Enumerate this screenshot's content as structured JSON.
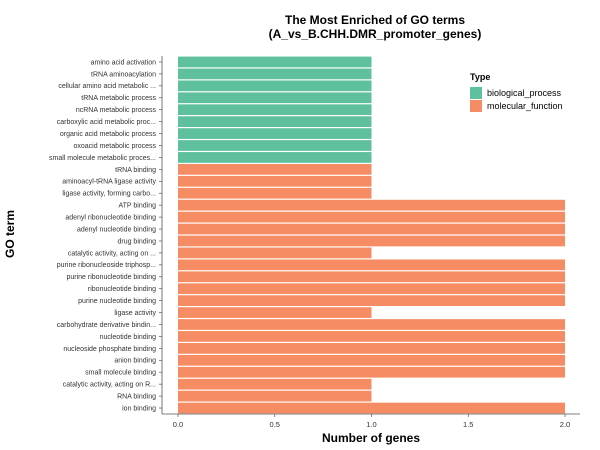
{
  "chart_data": {
    "type": "bar",
    "orientation": "horizontal",
    "title": "The Most Enriched of GO terms",
    "subtitle": "(A_vs_B.CHH.DMR_promoter_genes)",
    "xlabel": "Number of genes",
    "ylabel": "GO term",
    "xlim": [
      0,
      2
    ],
    "xticks": [
      "0.0",
      "0.5",
      "1.0",
      "1.5",
      "2.0"
    ],
    "legend": {
      "title": "Type",
      "position": "top-right",
      "entries": [
        {
          "name": "biological_process",
          "color": "#5fc09d"
        },
        {
          "name": "molecular_function",
          "color": "#f58c63"
        }
      ]
    },
    "categories": [
      "amino acid activation",
      "tRNA aminoacylation",
      "cellular amino acid metabolic ...",
      "tRNA metabolic process",
      "ncRNA metabolic process",
      "carboxylic acid metabolic proc...",
      "organic acid metabolic process",
      "oxoacid metabolic process",
      "small molecule metabolic proces...",
      "tRNA binding",
      "aminoacyl-tRNA ligase activity",
      "ligase activity, forming carbo...",
      "ATP binding",
      "adenyl ribonucleotide binding",
      "adenyl nucleotide binding",
      "drug binding",
      "catalytic activity, acting on ...",
      "purine ribonucleoside triphosp...",
      "purine ribonucleotide binding",
      "ribonucleotide binding",
      "purine nucleotide binding",
      "ligase activity",
      "carbohydrate derivative bindin...",
      "nucleotide binding",
      "nucleoside phosphate binding",
      "anion binding",
      "small molecule binding",
      "catalytic activity, acting on R...",
      "RNA binding",
      "ion binding"
    ],
    "values": [
      1,
      1,
      1,
      1,
      1,
      1,
      1,
      1,
      1,
      1,
      1,
      1,
      2,
      2,
      2,
      2,
      1,
      2,
      2,
      2,
      2,
      1,
      2,
      2,
      2,
      2,
      2,
      1,
      1,
      2
    ],
    "types": [
      "biological_process",
      "biological_process",
      "biological_process",
      "biological_process",
      "biological_process",
      "biological_process",
      "biological_process",
      "biological_process",
      "biological_process",
      "molecular_function",
      "molecular_function",
      "molecular_function",
      "molecular_function",
      "molecular_function",
      "molecular_function",
      "molecular_function",
      "molecular_function",
      "molecular_function",
      "molecular_function",
      "molecular_function",
      "molecular_function",
      "molecular_function",
      "molecular_function",
      "molecular_function",
      "molecular_function",
      "molecular_function",
      "molecular_function",
      "molecular_function",
      "molecular_function",
      "molecular_function"
    ],
    "grid": false
  }
}
